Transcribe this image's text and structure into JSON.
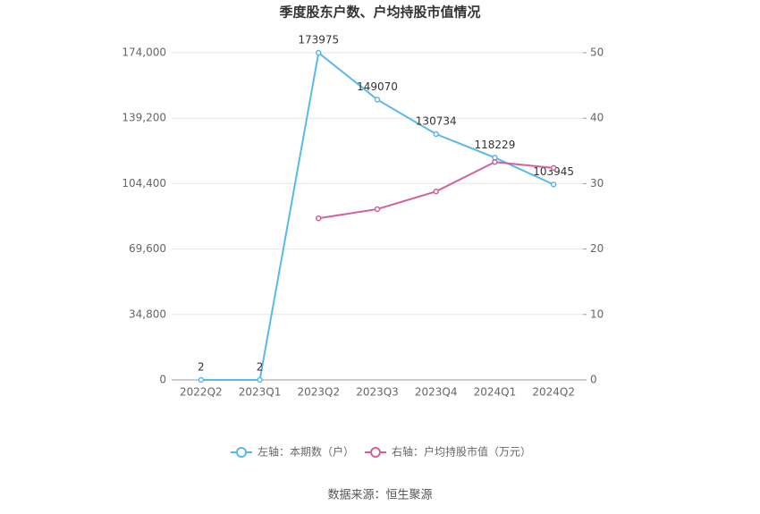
{
  "chart_data": {
    "type": "line",
    "title": "季度股东户数、户均持股市值情况",
    "categories": [
      "2022Q2",
      "2023Q1",
      "2023Q2",
      "2023Q3",
      "2023Q4",
      "2024Q1",
      "2024Q2"
    ],
    "series": [
      {
        "name": "左轴：本期数（户）",
        "color": "#5ab8ea",
        "values": [
          2,
          2,
          173975,
          149070,
          130734,
          118229,
          103945
        ]
      },
      {
        "name": "右轴：户均持股市值（万元）",
        "color": "#d1609e",
        "axis": "y2",
        "values": [
          null,
          null,
          24.7,
          26.1,
          28.8,
          33.3,
          32.4
        ]
      }
    ],
    "ylim": [
      0,
      174000
    ],
    "yticks": [
      0,
      {
        "value": 34800,
        "label": "34,800"
      },
      {
        "value": 69600,
        "label": "69,600"
      },
      {
        "value": 104400,
        "label": "104,400"
      },
      {
        "value": 139200,
        "label": "139,200"
      },
      {
        "value": 174000,
        "label": "174,000"
      }
    ],
    "y2lim": [
      0,
      50
    ],
    "y2ticks": [
      0,
      10,
      20,
      30,
      40,
      50
    ],
    "grid": true,
    "legend": "bottom",
    "source": "数据来源：恒生聚源"
  }
}
